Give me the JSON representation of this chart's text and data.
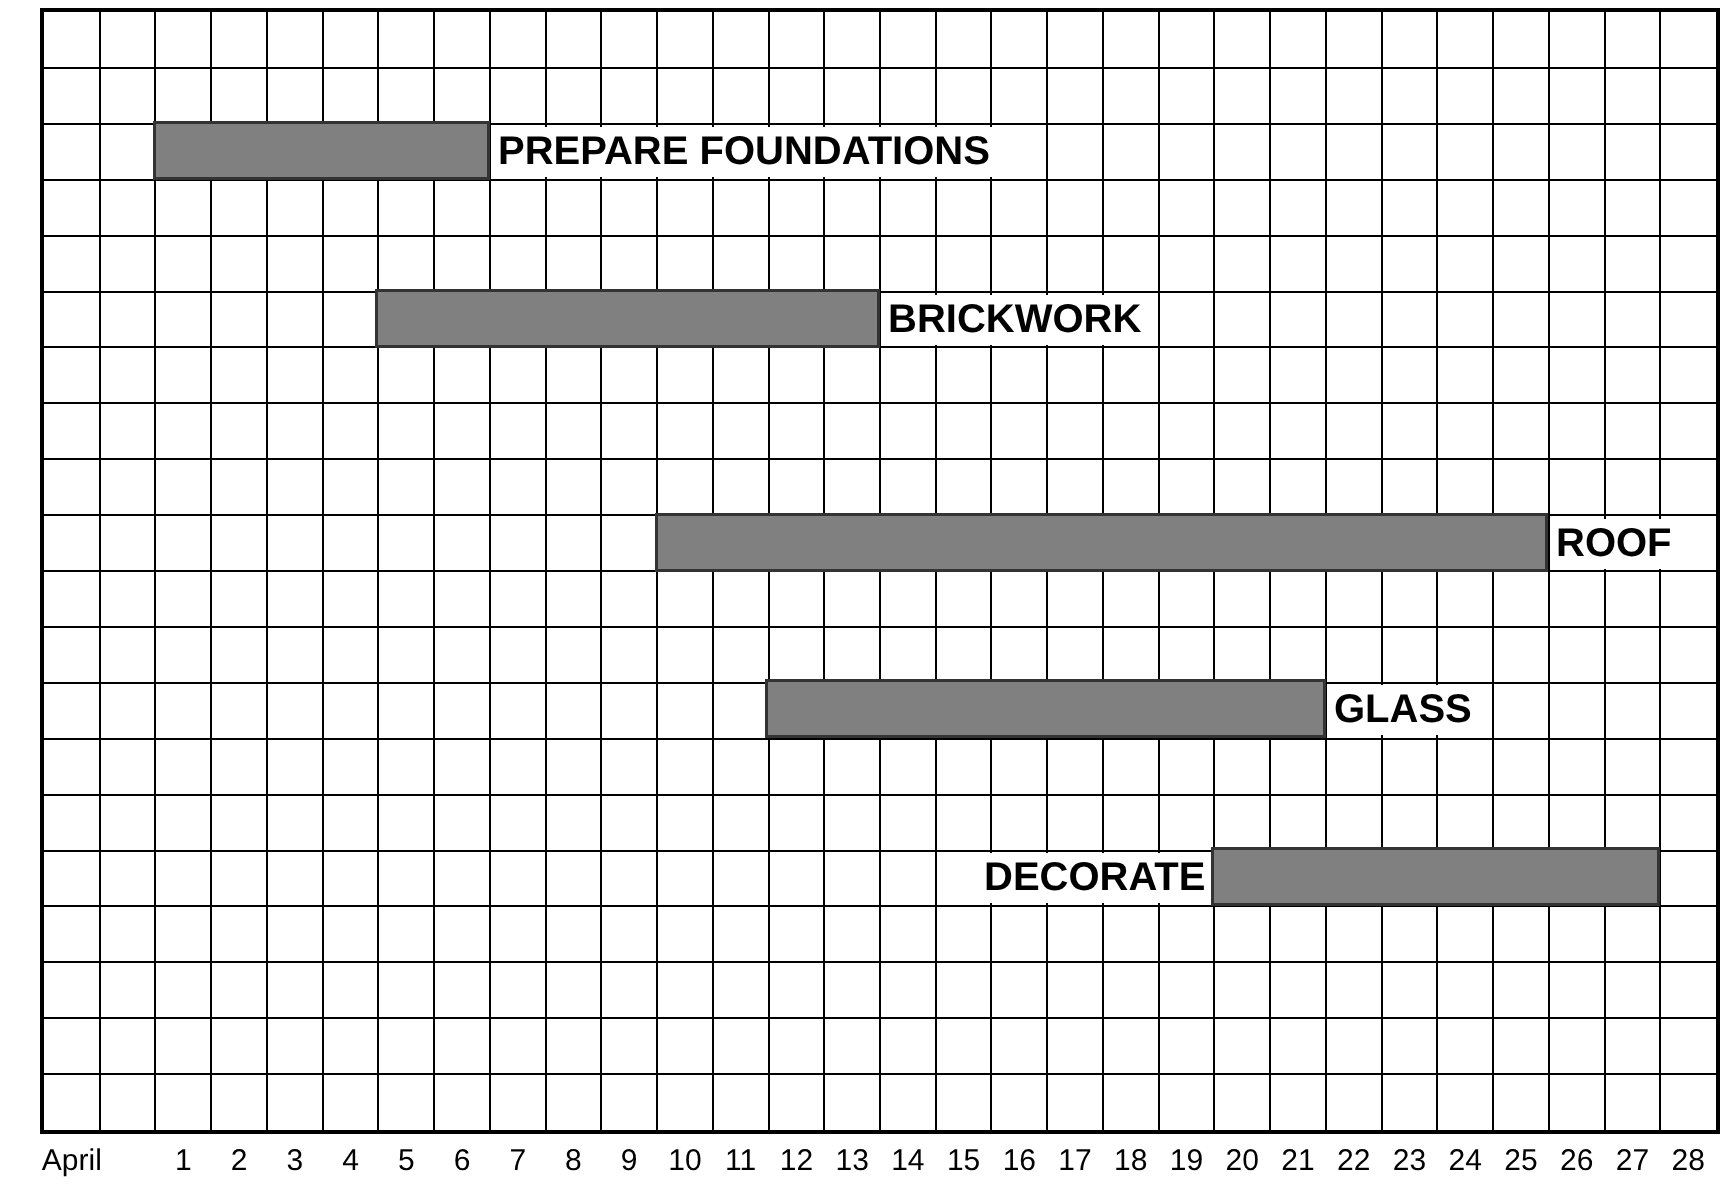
{
  "chart_data": {
    "type": "bar",
    "orientation": "horizontal",
    "categories": [
      null,
      null,
      "PREPARE FOUNDATIONS",
      null,
      null,
      "BRICKWORK",
      null,
      null,
      null,
      "ROOF",
      null,
      null,
      "GLASS",
      null,
      null,
      "DECORATE",
      null,
      null,
      null,
      null
    ],
    "base": [
      null,
      null,
      0.5,
      null,
      null,
      4.5,
      null,
      null,
      null,
      9.5,
      null,
      null,
      11.5,
      null,
      null,
      19.5,
      null,
      null,
      null,
      null
    ],
    "values": [
      null,
      null,
      6,
      null,
      null,
      9,
      null,
      null,
      null,
      16,
      null,
      null,
      10,
      null,
      null,
      8,
      null,
      null,
      null,
      null
    ],
    "color": "#808080",
    "xlim": [
      -1.5,
      28.5
    ],
    "xticks": [
      {
        "value": -1,
        "label": "April"
      },
      1,
      2,
      3,
      4,
      5,
      6,
      7,
      8,
      9,
      10,
      11,
      12,
      13,
      14,
      15,
      16,
      17,
      18,
      19,
      20,
      21,
      22,
      23,
      24,
      25,
      26,
      27,
      28
    ],
    "tick_labels": "x",
    "grid": true,
    "legend": false
  }
}
